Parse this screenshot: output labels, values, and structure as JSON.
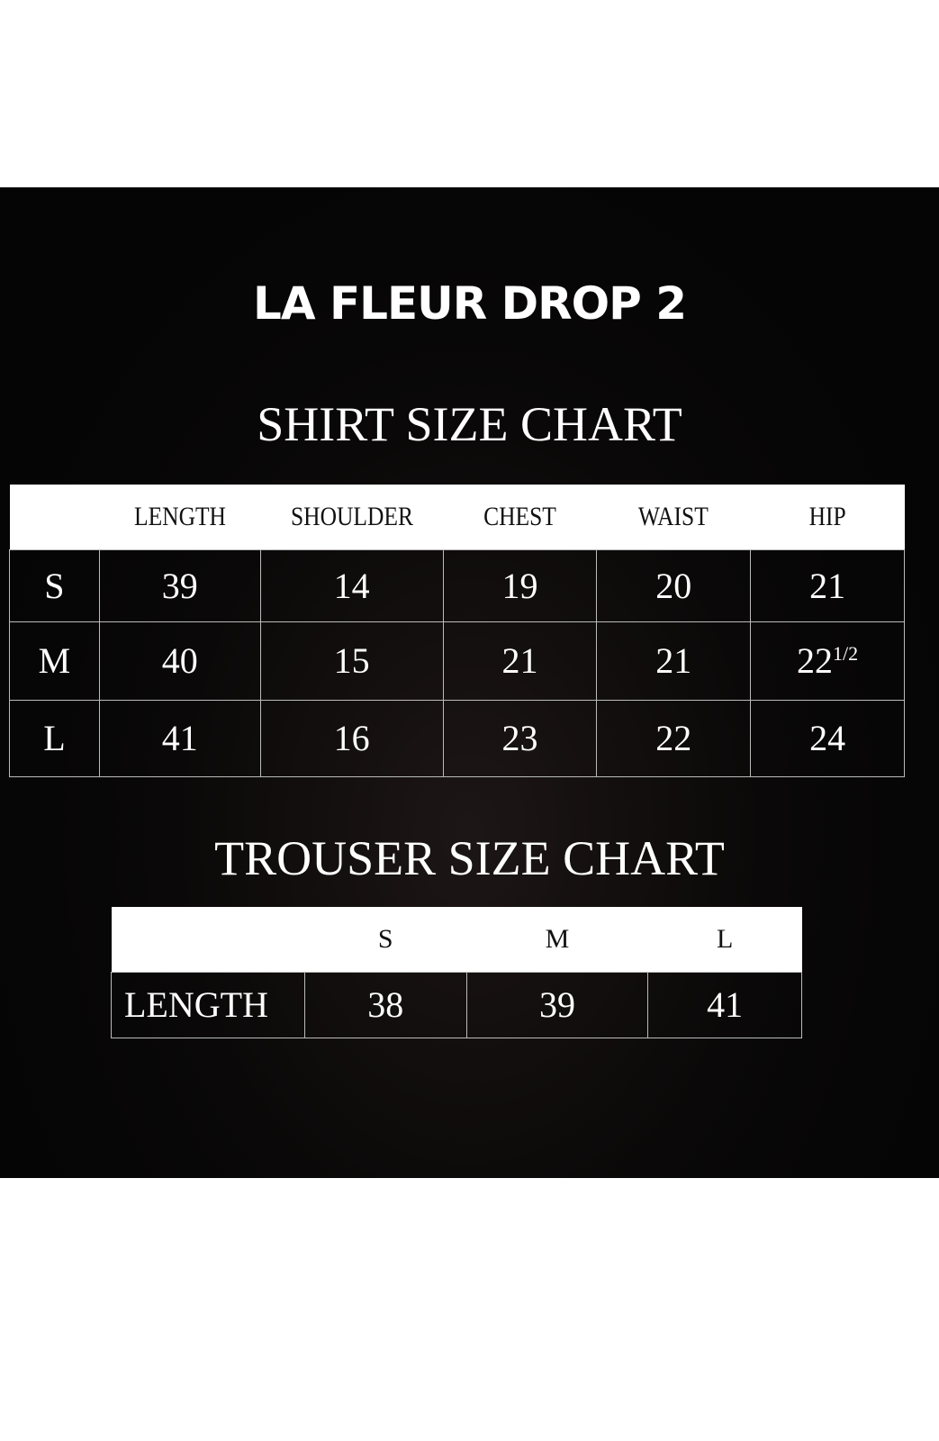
{
  "title": "LA FLEUR DROP 2",
  "shirt": {
    "heading": "SHIRT SIZE CHART",
    "columns": [
      "",
      "LENGTH",
      "SHOULDER",
      "CHEST",
      "WAIST",
      "HIP"
    ],
    "rows": [
      {
        "size": "S",
        "values": [
          "39",
          "14",
          "19",
          "20",
          "21"
        ]
      },
      {
        "size": "M",
        "values": [
          "40",
          "15",
          "21",
          "21",
          "22"
        ],
        "hip_fraction": "1/2"
      },
      {
        "size": "L",
        "values": [
          "41",
          "16",
          "23",
          "22",
          "24"
        ]
      }
    ]
  },
  "trouser": {
    "heading": "TROUSER SIZE CHART",
    "columns": [
      "",
      "S",
      "M",
      "L"
    ],
    "rows": [
      {
        "label": "LENGTH",
        "values": [
          "38",
          "39",
          "41"
        ]
      }
    ]
  }
}
